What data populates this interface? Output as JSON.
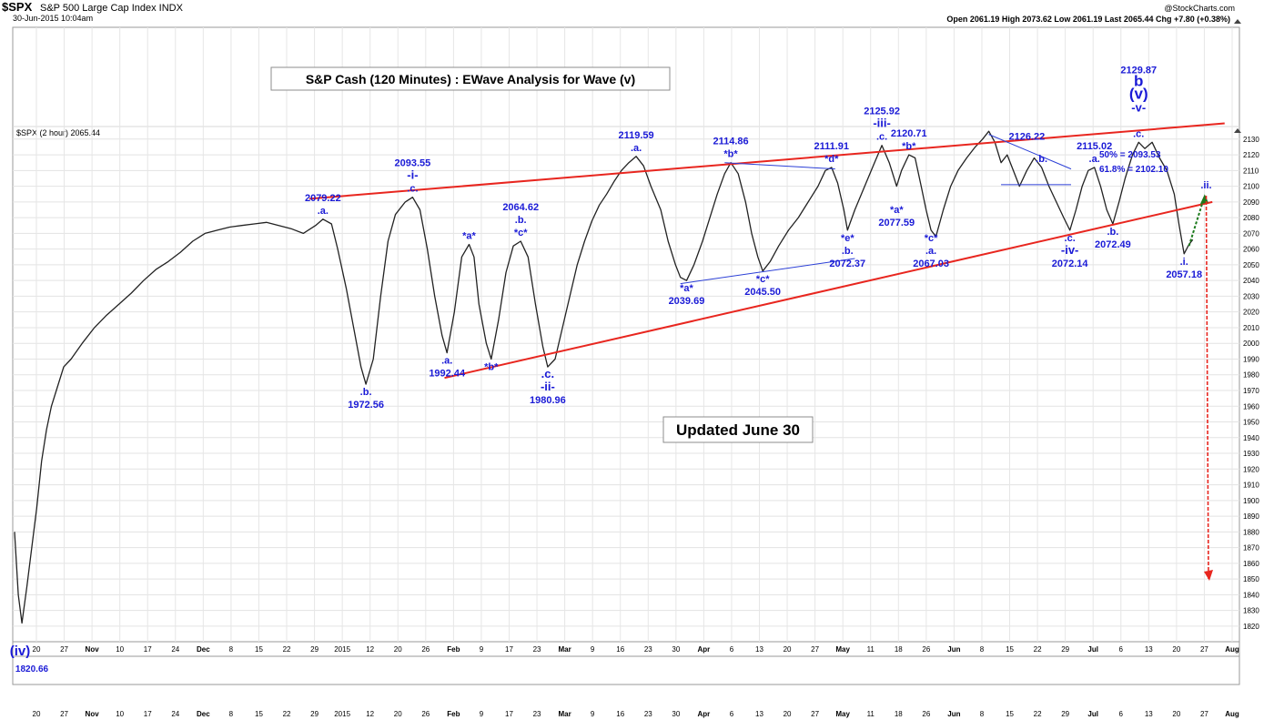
{
  "header": {
    "symbol": "$SPX",
    "name": "S&P 500 Large Cap Index",
    "exchange": "INDX",
    "date": "30-Jun-2015 10:04am",
    "source": "@StockCharts.com",
    "open_label": "Open",
    "open": "2061.19",
    "high_label": "High",
    "high": "2073.62",
    "low_label": "Low",
    "low": "2061.19",
    "last_label": "Last",
    "last": "2065.44",
    "chg_label": "Chg",
    "chg": "+7.80 (+0.38%)",
    "legend": "$SPX (2 hour) 2065.44"
  },
  "chart_data": {
    "type": "line",
    "title": "S&P Cash (120 Minutes) : EWave Analysis for Wave (v)",
    "note": "Updated June 30",
    "ylim": [
      1810,
      2140
    ],
    "x_ticks": [
      "20",
      "27",
      "Nov",
      "10",
      "17",
      "24",
      "Dec",
      "8",
      "15",
      "22",
      "29",
      "2015",
      "12",
      "20",
      "26",
      "Feb",
      "9",
      "17",
      "23",
      "Mar",
      "9",
      "16",
      "23",
      "30",
      "Apr",
      "6",
      "13",
      "20",
      "27",
      "May",
      "11",
      "18",
      "26",
      "Jun",
      "8",
      "15",
      "22",
      "29",
      "Jul",
      "6",
      "13",
      "20",
      "27",
      "Aug"
    ],
    "y_ticks": [
      2130,
      2120,
      2110,
      2100,
      2090,
      2080,
      2070,
      2060,
      2050,
      2040,
      2030,
      2020,
      2010,
      2000,
      1990,
      1980,
      1970,
      1960,
      1950,
      1940,
      1930,
      1920,
      1910,
      1900,
      1890,
      1880,
      1870,
      1860,
      1850,
      1840,
      1830,
      1820
    ],
    "series": [
      {
        "values": [
          [
            0,
            1880
          ],
          [
            3,
            1840
          ],
          [
            6,
            1822
          ],
          [
            10,
            1845
          ],
          [
            14,
            1870
          ],
          [
            18,
            1895
          ],
          [
            22,
            1925
          ],
          [
            26,
            1945
          ],
          [
            30,
            1960
          ],
          [
            34,
            1970
          ],
          [
            40,
            1985
          ],
          [
            46,
            1990
          ],
          [
            55,
            2000
          ],
          [
            65,
            2010
          ],
          [
            75,
            2018
          ],
          [
            85,
            2025
          ],
          [
            95,
            2032
          ],
          [
            105,
            2040
          ],
          [
            115,
            2047
          ],
          [
            125,
            2052
          ],
          [
            135,
            2058
          ],
          [
            145,
            2065
          ],
          [
            155,
            2070
          ],
          [
            165,
            2072
          ],
          [
            175,
            2074
          ],
          [
            185,
            2075
          ],
          [
            195,
            2076
          ],
          [
            205,
            2077
          ],
          [
            215,
            2075
          ],
          [
            225,
            2073
          ],
          [
            235,
            2070
          ],
          [
            245,
            2075
          ],
          [
            251,
            2079
          ],
          [
            258,
            2076
          ],
          [
            263,
            2060
          ],
          [
            270,
            2035
          ],
          [
            276,
            2010
          ],
          [
            282,
            1985
          ],
          [
            286,
            1974
          ],
          [
            292,
            1990
          ],
          [
            298,
            2030
          ],
          [
            304,
            2065
          ],
          [
            310,
            2082
          ],
          [
            318,
            2090
          ],
          [
            324,
            2093
          ],
          [
            330,
            2085
          ],
          [
            336,
            2060
          ],
          [
            342,
            2030
          ],
          [
            348,
            2005
          ],
          [
            352,
            1994
          ],
          [
            358,
            2020
          ],
          [
            364,
            2055
          ],
          [
            370,
            2063
          ],
          [
            374,
            2055
          ],
          [
            378,
            2025
          ],
          [
            384,
            2000
          ],
          [
            388,
            1990
          ],
          [
            394,
            2015
          ],
          [
            400,
            2045
          ],
          [
            406,
            2062
          ],
          [
            412,
            2065
          ],
          [
            418,
            2055
          ],
          [
            424,
            2025
          ],
          [
            430,
            1998
          ],
          [
            434,
            1985
          ],
          [
            440,
            1990
          ],
          [
            446,
            2010
          ],
          [
            452,
            2030
          ],
          [
            458,
            2050
          ],
          [
            464,
            2065
          ],
          [
            470,
            2078
          ],
          [
            476,
            2088
          ],
          [
            482,
            2095
          ],
          [
            488,
            2103
          ],
          [
            494,
            2110
          ],
          [
            500,
            2115
          ],
          [
            506,
            2119
          ],
          [
            512,
            2113
          ],
          [
            518,
            2100
          ],
          [
            526,
            2085
          ],
          [
            532,
            2065
          ],
          [
            538,
            2050
          ],
          [
            542,
            2042
          ],
          [
            547,
            2040
          ],
          [
            553,
            2050
          ],
          [
            560,
            2065
          ],
          [
            566,
            2080
          ],
          [
            572,
            2095
          ],
          [
            578,
            2108
          ],
          [
            583,
            2115
          ],
          [
            589,
            2108
          ],
          [
            595,
            2090
          ],
          [
            600,
            2070
          ],
          [
            605,
            2055
          ],
          [
            609,
            2046
          ],
          [
            615,
            2052
          ],
          [
            622,
            2062
          ],
          [
            630,
            2072
          ],
          [
            638,
            2080
          ],
          [
            646,
            2090
          ],
          [
            654,
            2100
          ],
          [
            660,
            2110
          ],
          [
            665,
            2112
          ],
          [
            670,
            2102
          ],
          [
            675,
            2085
          ],
          [
            678,
            2072
          ],
          [
            684,
            2085
          ],
          [
            692,
            2100
          ],
          [
            700,
            2115
          ],
          [
            706,
            2126
          ],
          [
            712,
            2115
          ],
          [
            718,
            2100
          ],
          [
            722,
            2110
          ],
          [
            728,
            2120
          ],
          [
            733,
            2118
          ],
          [
            738,
            2100
          ],
          [
            742,
            2085
          ],
          [
            746,
            2072
          ],
          [
            750,
            2068
          ],
          [
            756,
            2085
          ],
          [
            762,
            2100
          ],
          [
            768,
            2110
          ],
          [
            775,
            2118
          ],
          [
            782,
            2125
          ],
          [
            788,
            2130
          ],
          [
            793,
            2135
          ],
          [
            798,
            2128
          ],
          [
            803,
            2115
          ],
          [
            808,
            2120
          ],
          [
            812,
            2112
          ],
          [
            818,
            2100
          ],
          [
            824,
            2110
          ],
          [
            830,
            2118
          ],
          [
            836,
            2112
          ],
          [
            842,
            2100
          ],
          [
            848,
            2090
          ],
          [
            854,
            2080
          ],
          [
            859,
            2072
          ],
          [
            864,
            2085
          ],
          [
            869,
            2100
          ],
          [
            874,
            2110
          ],
          [
            879,
            2112
          ],
          [
            884,
            2100
          ],
          [
            889,
            2085
          ],
          [
            894,
            2076
          ],
          [
            899,
            2090
          ],
          [
            904,
            2105
          ],
          [
            910,
            2120
          ],
          [
            915,
            2128
          ],
          [
            920,
            2124
          ],
          [
            926,
            2128
          ],
          [
            932,
            2118
          ],
          [
            938,
            2110
          ],
          [
            944,
            2095
          ],
          [
            948,
            2075
          ],
          [
            952,
            2057
          ],
          [
            956,
            2063
          ],
          [
            959,
            2066
          ]
        ]
      }
    ],
    "annotations": [
      {
        "t": "2079.22",
        "i": 251,
        "p": 2079,
        "d": "up",
        "o": 2,
        "c": "blue"
      },
      {
        "t": ".a.",
        "i": 251,
        "p": 2079,
        "d": "up",
        "o": 1,
        "c": "blue"
      },
      {
        "t": "2093.55",
        "i": 324,
        "p": 2093,
        "d": "up",
        "o": 3,
        "c": "blue"
      },
      {
        "t": "-i-",
        "i": 324,
        "p": 2093,
        "d": "up",
        "o": 2,
        "c": "blue",
        "big": true
      },
      {
        "t": ".c.",
        "i": 324,
        "p": 2093,
        "d": "up",
        "o": 1,
        "c": "blue"
      },
      {
        "t": ".b.",
        "i": 286,
        "p": 1974,
        "d": "down",
        "o": 1,
        "c": "blue"
      },
      {
        "t": "1972.56",
        "i": 286,
        "p": 1974,
        "d": "down",
        "o": 2,
        "c": "blue"
      },
      {
        "t": "*a*",
        "i": 370,
        "p": 2063,
        "d": "up",
        "o": 1,
        "c": "blue"
      },
      {
        "t": ".a.",
        "i": 352,
        "p": 1994,
        "d": "down",
        "o": 1,
        "c": "blue"
      },
      {
        "t": "1992.44",
        "i": 352,
        "p": 1994,
        "d": "down",
        "o": 2,
        "c": "blue"
      },
      {
        "t": "*b*",
        "i": 388,
        "p": 1990,
        "d": "down",
        "o": 1,
        "c": "blue"
      },
      {
        "t": "2064.62",
        "i": 412,
        "p": 2065,
        "d": "up",
        "o": 3,
        "c": "blue"
      },
      {
        "t": ".b.",
        "i": 412,
        "p": 2065,
        "d": "up",
        "o": 2,
        "c": "blue"
      },
      {
        "t": "*c*",
        "i": 412,
        "p": 2065,
        "d": "up",
        "o": 1,
        "c": "blue"
      },
      {
        "t": ".c.",
        "i": 434,
        "p": 1985,
        "d": "down",
        "o": 1,
        "c": "blue",
        "big": true
      },
      {
        "t": "-ii-",
        "i": 434,
        "p": 1985,
        "d": "down",
        "o": 2,
        "c": "blue",
        "big": true
      },
      {
        "t": "1980.96",
        "i": 434,
        "p": 1985,
        "d": "down",
        "o": 3,
        "c": "blue"
      },
      {
        "t": "2119.59",
        "i": 506,
        "p": 2119,
        "d": "up",
        "o": 2,
        "c": "blue"
      },
      {
        "t": ".a.",
        "i": 506,
        "p": 2119,
        "d": "up",
        "o": 1,
        "c": "blue"
      },
      {
        "t": "*a*",
        "i": 547,
        "p": 2040,
        "d": "down",
        "o": 1,
        "c": "blue"
      },
      {
        "t": "2039.69",
        "i": 547,
        "p": 2040,
        "d": "down",
        "o": 2,
        "c": "blue"
      },
      {
        "t": "2114.86",
        "i": 583,
        "p": 2115,
        "d": "up",
        "o": 2,
        "c": "blue"
      },
      {
        "t": "*b*",
        "i": 583,
        "p": 2115,
        "d": "up",
        "o": 1,
        "c": "blue"
      },
      {
        "t": "*c*",
        "i": 609,
        "p": 2046,
        "d": "down",
        "o": 1,
        "c": "blue"
      },
      {
        "t": "2045.50",
        "i": 609,
        "p": 2046,
        "d": "down",
        "o": 2,
        "c": "blue"
      },
      {
        "t": "2111.91",
        "i": 665,
        "p": 2112,
        "d": "up",
        "o": 2,
        "c": "blue"
      },
      {
        "t": "*d*",
        "i": 665,
        "p": 2112,
        "d": "up",
        "o": 1,
        "c": "blue"
      },
      {
        "t": "*e*",
        "i": 678,
        "p": 2072,
        "d": "down",
        "o": 1,
        "c": "blue"
      },
      {
        "t": ".b.",
        "i": 678,
        "p": 2072,
        "d": "down",
        "o": 2,
        "c": "blue"
      },
      {
        "t": "2072.37",
        "i": 678,
        "p": 2072,
        "d": "down",
        "o": 3,
        "c": "blue"
      },
      {
        "t": "2125.92",
        "i": 706,
        "p": 2126,
        "d": "up",
        "o": 3,
        "c": "blue"
      },
      {
        "t": "-iii-",
        "i": 706,
        "p": 2126,
        "d": "up",
        "o": 2,
        "c": "blue",
        "big": true
      },
      {
        "t": ".c.",
        "i": 706,
        "p": 2126,
        "d": "up",
        "o": 1,
        "c": "blue"
      },
      {
        "t": "2120.71",
        "i": 728,
        "p": 2120,
        "d": "up",
        "o": 2,
        "c": "blue"
      },
      {
        "t": "*b*",
        "i": 728,
        "p": 2120,
        "d": "up",
        "o": 1,
        "c": "blue"
      },
      {
        "t": "*a*",
        "i": 718,
        "p": 2090,
        "d": "down",
        "o": 1,
        "c": "blue"
      },
      {
        "t": "2077.59",
        "i": 718,
        "p": 2090,
        "d": "down",
        "o": 2,
        "c": "blue"
      },
      {
        "t": "*c*",
        "i": 746,
        "p": 2072,
        "d": "down",
        "o": 1,
        "c": "blue"
      },
      {
        "t": ".a.",
        "i": 746,
        "p": 2072,
        "d": "down",
        "o": 2,
        "c": "blue"
      },
      {
        "t": "2067.03",
        "i": 746,
        "p": 2072,
        "d": "down",
        "o": 3,
        "c": "blue"
      },
      {
        "t": "2126.22",
        "i": 824,
        "p": 2118,
        "d": "up",
        "o": 2,
        "c": "blue"
      },
      {
        "t": ".b.",
        "i": 836,
        "p": 2112,
        "d": "up",
        "o": 1,
        "c": "blue"
      },
      {
        "t": "2115.02",
        "i": 879,
        "p": 2112,
        "d": "up",
        "o": 2,
        "c": "blue"
      },
      {
        "t": ".a.",
        "i": 879,
        "p": 2112,
        "d": "up",
        "o": 1,
        "c": "blue"
      },
      {
        "t": ".c.",
        "i": 859,
        "p": 2072,
        "d": "down",
        "o": 1,
        "c": "blue"
      },
      {
        "t": "-iv-",
        "i": 859,
        "p": 2072,
        "d": "down",
        "o": 2,
        "c": "blue",
        "big": true
      },
      {
        "t": "2072.14",
        "i": 859,
        "p": 2072,
        "d": "down",
        "o": 3,
        "c": "blue"
      },
      {
        "t": ".b.",
        "i": 894,
        "p": 2076,
        "d": "down",
        "o": 1,
        "c": "blue"
      },
      {
        "t": "2072.49",
        "i": 894,
        "p": 2076,
        "d": "down",
        "o": 2,
        "c": "blue"
      },
      {
        "t": "2129.87",
        "i": 915,
        "p": 2128,
        "d": "up",
        "o": 6,
        "c": "blue"
      },
      {
        "t": "b",
        "i": 915,
        "p": 2128,
        "d": "up",
        "o": 5,
        "c": "blue",
        "huge": true
      },
      {
        "t": "(v)",
        "i": 915,
        "p": 2128,
        "d": "up",
        "o": 4,
        "c": "blue",
        "huge": true
      },
      {
        "t": "-v-",
        "i": 915,
        "p": 2128,
        "d": "up",
        "o": 3,
        "c": "blue",
        "big": true
      },
      {
        "t": ".c.",
        "i": 915,
        "p": 2128,
        "d": "up",
        "o": 1,
        "c": "blue"
      },
      {
        "t": ".i.",
        "i": 952,
        "p": 2057,
        "d": "down",
        "o": 1,
        "c": "blue"
      },
      {
        "t": "2057.18",
        "i": 952,
        "p": 2057,
        "d": "down",
        "o": 2,
        "c": "blue"
      },
      {
        "t": ".ii.",
        "i": 970,
        "p": 2095,
        "d": "up",
        "o": 1,
        "c": "blue"
      }
    ],
    "fib_labels": [
      "50% = 2093.53",
      "61.8% = 2102.10"
    ],
    "bottom_labels": [
      "(iv)",
      "1820.66"
    ]
  }
}
